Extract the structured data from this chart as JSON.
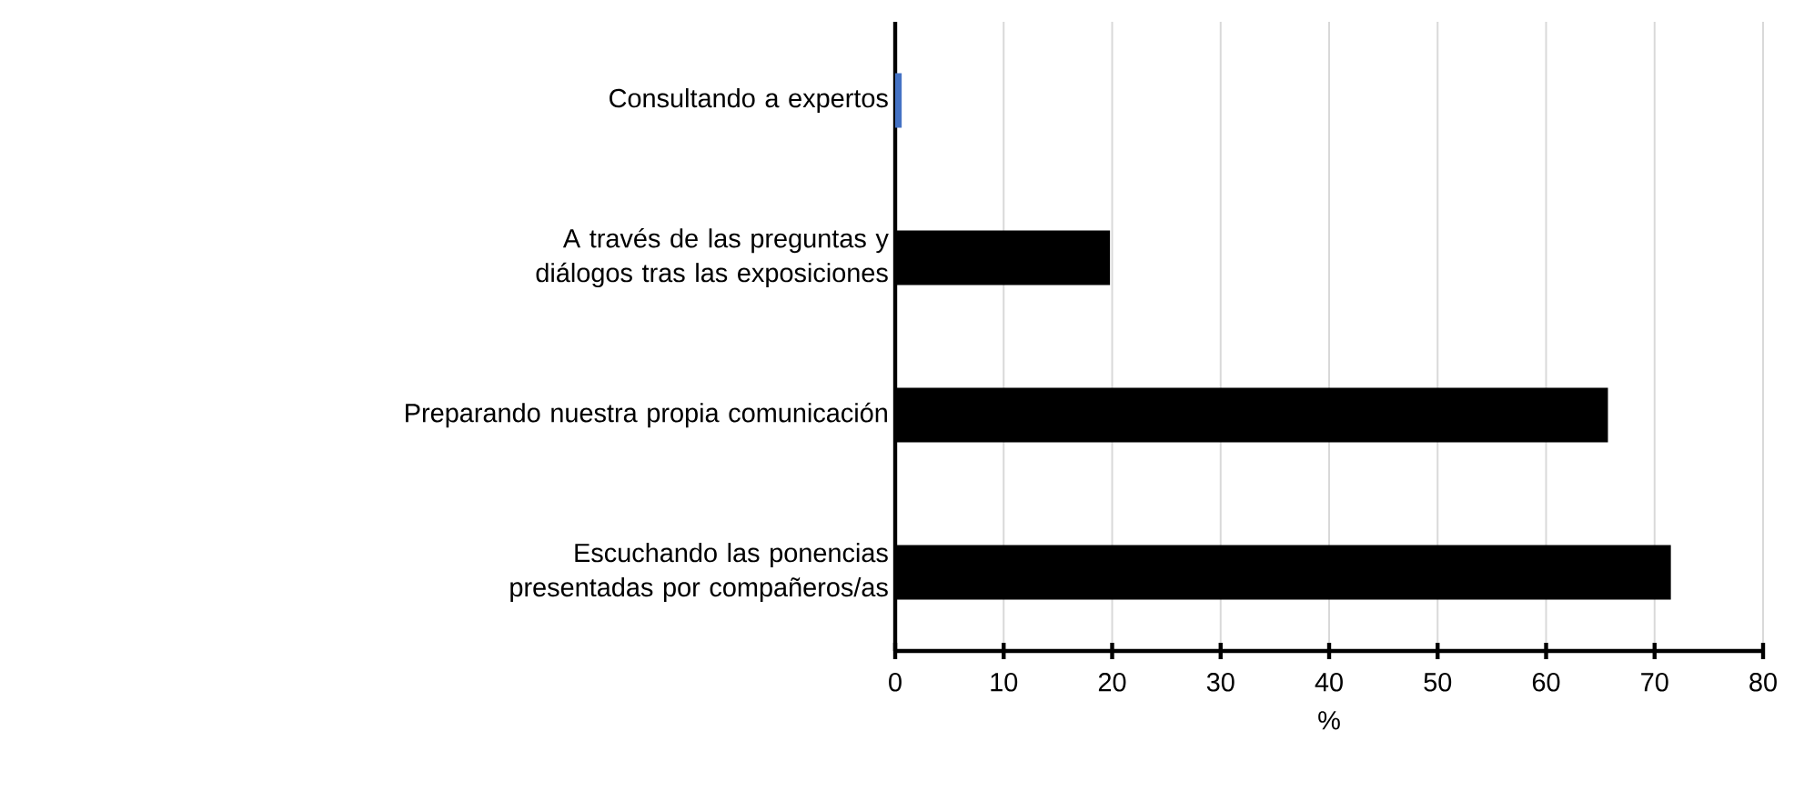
{
  "chart_data": {
    "type": "bar",
    "orientation": "horizontal",
    "xlabel": "%",
    "categories": [
      "Consultando a expertos",
      "A través de las preguntas y diálogos tras las exposiciones",
      "Preparando nuestra propia comunicación",
      "Escuchando las ponencias presentadas por compañeros/as"
    ],
    "values": [
      0.6,
      19.8,
      65.7,
      71.5
    ],
    "colors": [
      "#4472c4",
      "#000000",
      "#000000",
      "#000000"
    ],
    "xlim": [
      0,
      80
    ],
    "xticks": [
      0,
      10,
      20,
      30,
      40,
      50,
      60,
      70,
      80
    ],
    "grid": "x"
  }
}
